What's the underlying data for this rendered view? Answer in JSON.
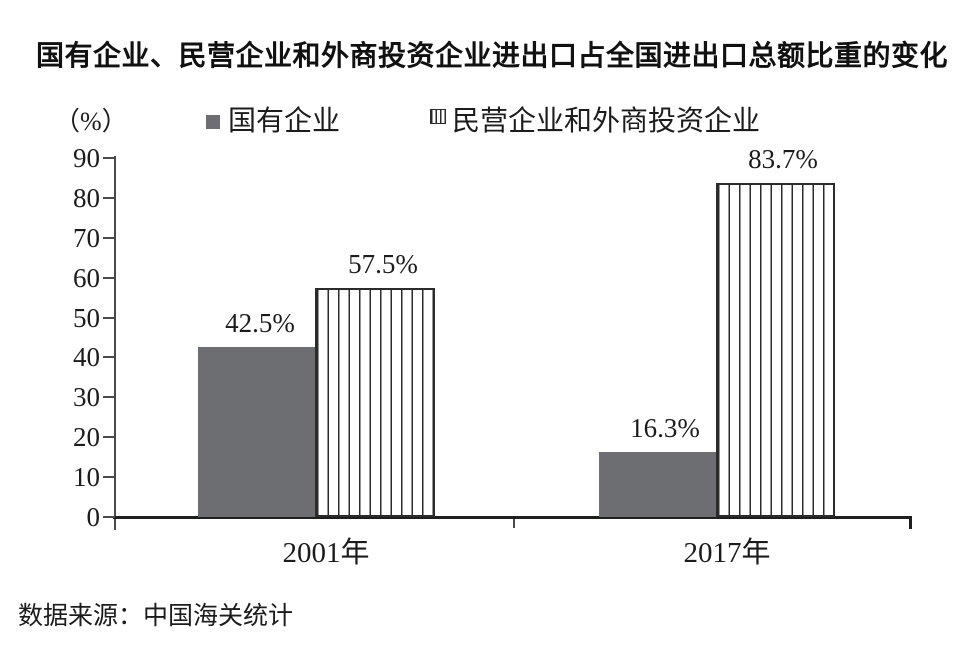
{
  "chart_data": {
    "type": "bar",
    "title": "国有企业、民营企业和外商投资企业进出口占全国进出口总额比重的变化",
    "unit_label": "（%）",
    "categories": [
      "2001年",
      "2017年"
    ],
    "series": [
      {
        "name": "国有企业",
        "style": "solid",
        "color": "#6d6e71",
        "values": [
          42.5,
          16.3
        ],
        "value_labels": [
          "42.5%",
          "16.3%"
        ]
      },
      {
        "name": "民营企业和外商投资企业",
        "style": "vertical-stripes",
        "color": "#ffffff",
        "stripe_color": "#2b2b2b",
        "values": [
          57.5,
          83.7
        ],
        "value_labels": [
          "57.5%",
          "83.7%"
        ]
      }
    ],
    "ylim": [
      0,
      90
    ],
    "yticks": [
      0,
      10,
      20,
      30,
      40,
      50,
      60,
      70,
      80,
      90
    ],
    "grid": false,
    "legend_position": "top",
    "source": "数据来源：中国海关统计"
  }
}
